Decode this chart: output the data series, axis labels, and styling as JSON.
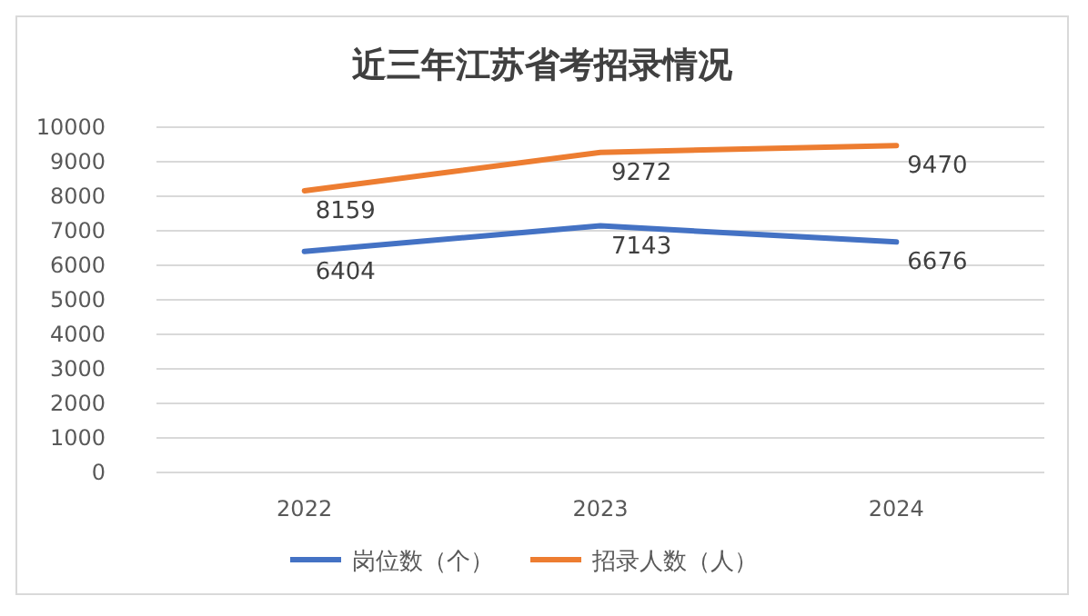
{
  "chart_data": {
    "type": "line",
    "title": "近三年江苏省考招录情况",
    "categories": [
      "2022",
      "2023",
      "2024"
    ],
    "series": [
      {
        "name": "岗位数（个）",
        "color": "#4472c4",
        "values": [
          6404,
          7143,
          6676
        ]
      },
      {
        "name": "招录人数（人）",
        "color": "#ed7d31",
        "values": [
          8159,
          9272,
          9470
        ]
      }
    ],
    "ylim": [
      0,
      10000
    ],
    "yticks": [
      0,
      1000,
      2000,
      3000,
      4000,
      5000,
      6000,
      7000,
      8000,
      9000,
      10000
    ],
    "grid": "y",
    "legend": "bottom",
    "data_labels": true,
    "marker": "none",
    "line_style": "solid"
  }
}
